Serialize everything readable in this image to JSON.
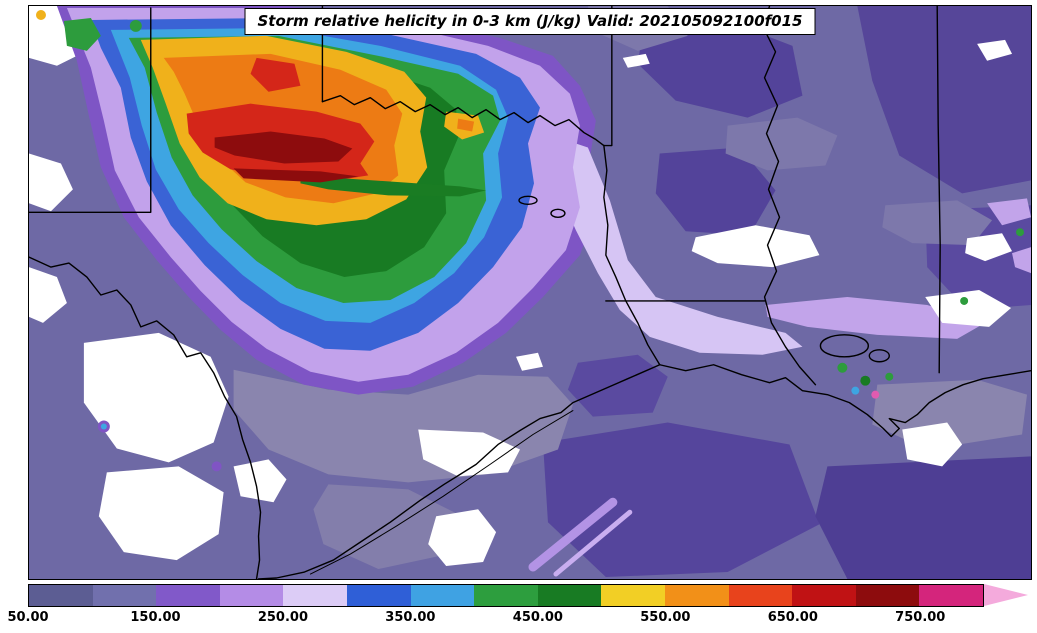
{
  "title": {
    "text": "Storm relative helicity in 0-3 km (J/kg) Valid: 202105092100f015"
  },
  "colorbar": {
    "units": "J/kg",
    "range": [
      50,
      800
    ],
    "extend": "max",
    "extend_color": "#f4aadc",
    "tick_values": [
      50,
      150,
      250,
      350,
      450,
      550,
      650,
      750
    ],
    "tick_labels": [
      "50.00",
      "150.00",
      "250.00",
      "350.00",
      "450.00",
      "550.00",
      "650.00",
      "750.00"
    ],
    "segments": [
      {
        "from": 50,
        "to": 100,
        "color": "#5c5d93"
      },
      {
        "from": 100,
        "to": 150,
        "color": "#7170ad"
      },
      {
        "from": 150,
        "to": 200,
        "color": "#8159c9"
      },
      {
        "from": 200,
        "to": 250,
        "color": "#b48ce6"
      },
      {
        "from": 250,
        "to": 300,
        "color": "#dcccf6"
      },
      {
        "from": 300,
        "to": 350,
        "color": "#2f5fd7"
      },
      {
        "from": 350,
        "to": 400,
        "color": "#3fa2e3"
      },
      {
        "from": 400,
        "to": 450,
        "color": "#2d9e3e"
      },
      {
        "from": 450,
        "to": 500,
        "color": "#187b23"
      },
      {
        "from": 500,
        "to": 550,
        "color": "#f2cf25"
      },
      {
        "from": 550,
        "to": 600,
        "color": "#f29018"
      },
      {
        "from": 600,
        "to": 650,
        "color": "#e8431c"
      },
      {
        "from": 650,
        "to": 700,
        "color": "#c01214"
      },
      {
        "from": 700,
        "to": 750,
        "color": "#8d0c0d"
      },
      {
        "from": 750,
        "to": 800,
        "color": "#d4257c"
      }
    ]
  },
  "chart_data": {
    "type": "filled_contour_map",
    "title": "Storm relative helicity in 0-3 km (J/kg) Valid: 202105092100f015",
    "variable": "Storm relative helicity 0-3 km",
    "units": "J/kg",
    "valid_time": "20210509 2100 f015",
    "region": "South-central United States (Texas, Oklahoma, Arkansas, Louisiana, Mississippi) and northern Mexico / Gulf coast",
    "levels": [
      50,
      100,
      150,
      200,
      250,
      300,
      350,
      400,
      450,
      500,
      550,
      600,
      650,
      700,
      750,
      800
    ],
    "level_colors": [
      "#5c5d93",
      "#7170ad",
      "#8159c9",
      "#b48ce6",
      "#dcccf6",
      "#2f5fd7",
      "#3fa2e3",
      "#2d9e3e",
      "#187b23",
      "#f2cf25",
      "#f29018",
      "#e8431c",
      "#c01214",
      "#8d0c0d",
      "#d4257c"
    ],
    "colorbar_extend": "max",
    "features": [
      {
        "name": "maximum-helicity-core",
        "location": "northwest Texas / Texas panhandle into western Oklahoma",
        "approx_value": "550-750 J/kg"
      },
      {
        "name": "high-helicity-band",
        "location": "west Texas through the Red River valley toward north-central Texas",
        "approx_value": "300-550 J/kg"
      },
      {
        "name": "moderate-ring",
        "location": "lavender/blue ring surrounding the core, extending east toward east Texas",
        "approx_value": "200-350 J/kg"
      },
      {
        "name": "low-background",
        "location": "Arkansas, Louisiana, Mississippi and central/south Texas",
        "approx_value": "50-200 J/kg"
      },
      {
        "name": "below-threshold",
        "location": "white patches over northern Mexico, south Texas, coastal bend and northeast Louisiana",
        "approx_value": "< 50 J/kg"
      }
    ]
  }
}
